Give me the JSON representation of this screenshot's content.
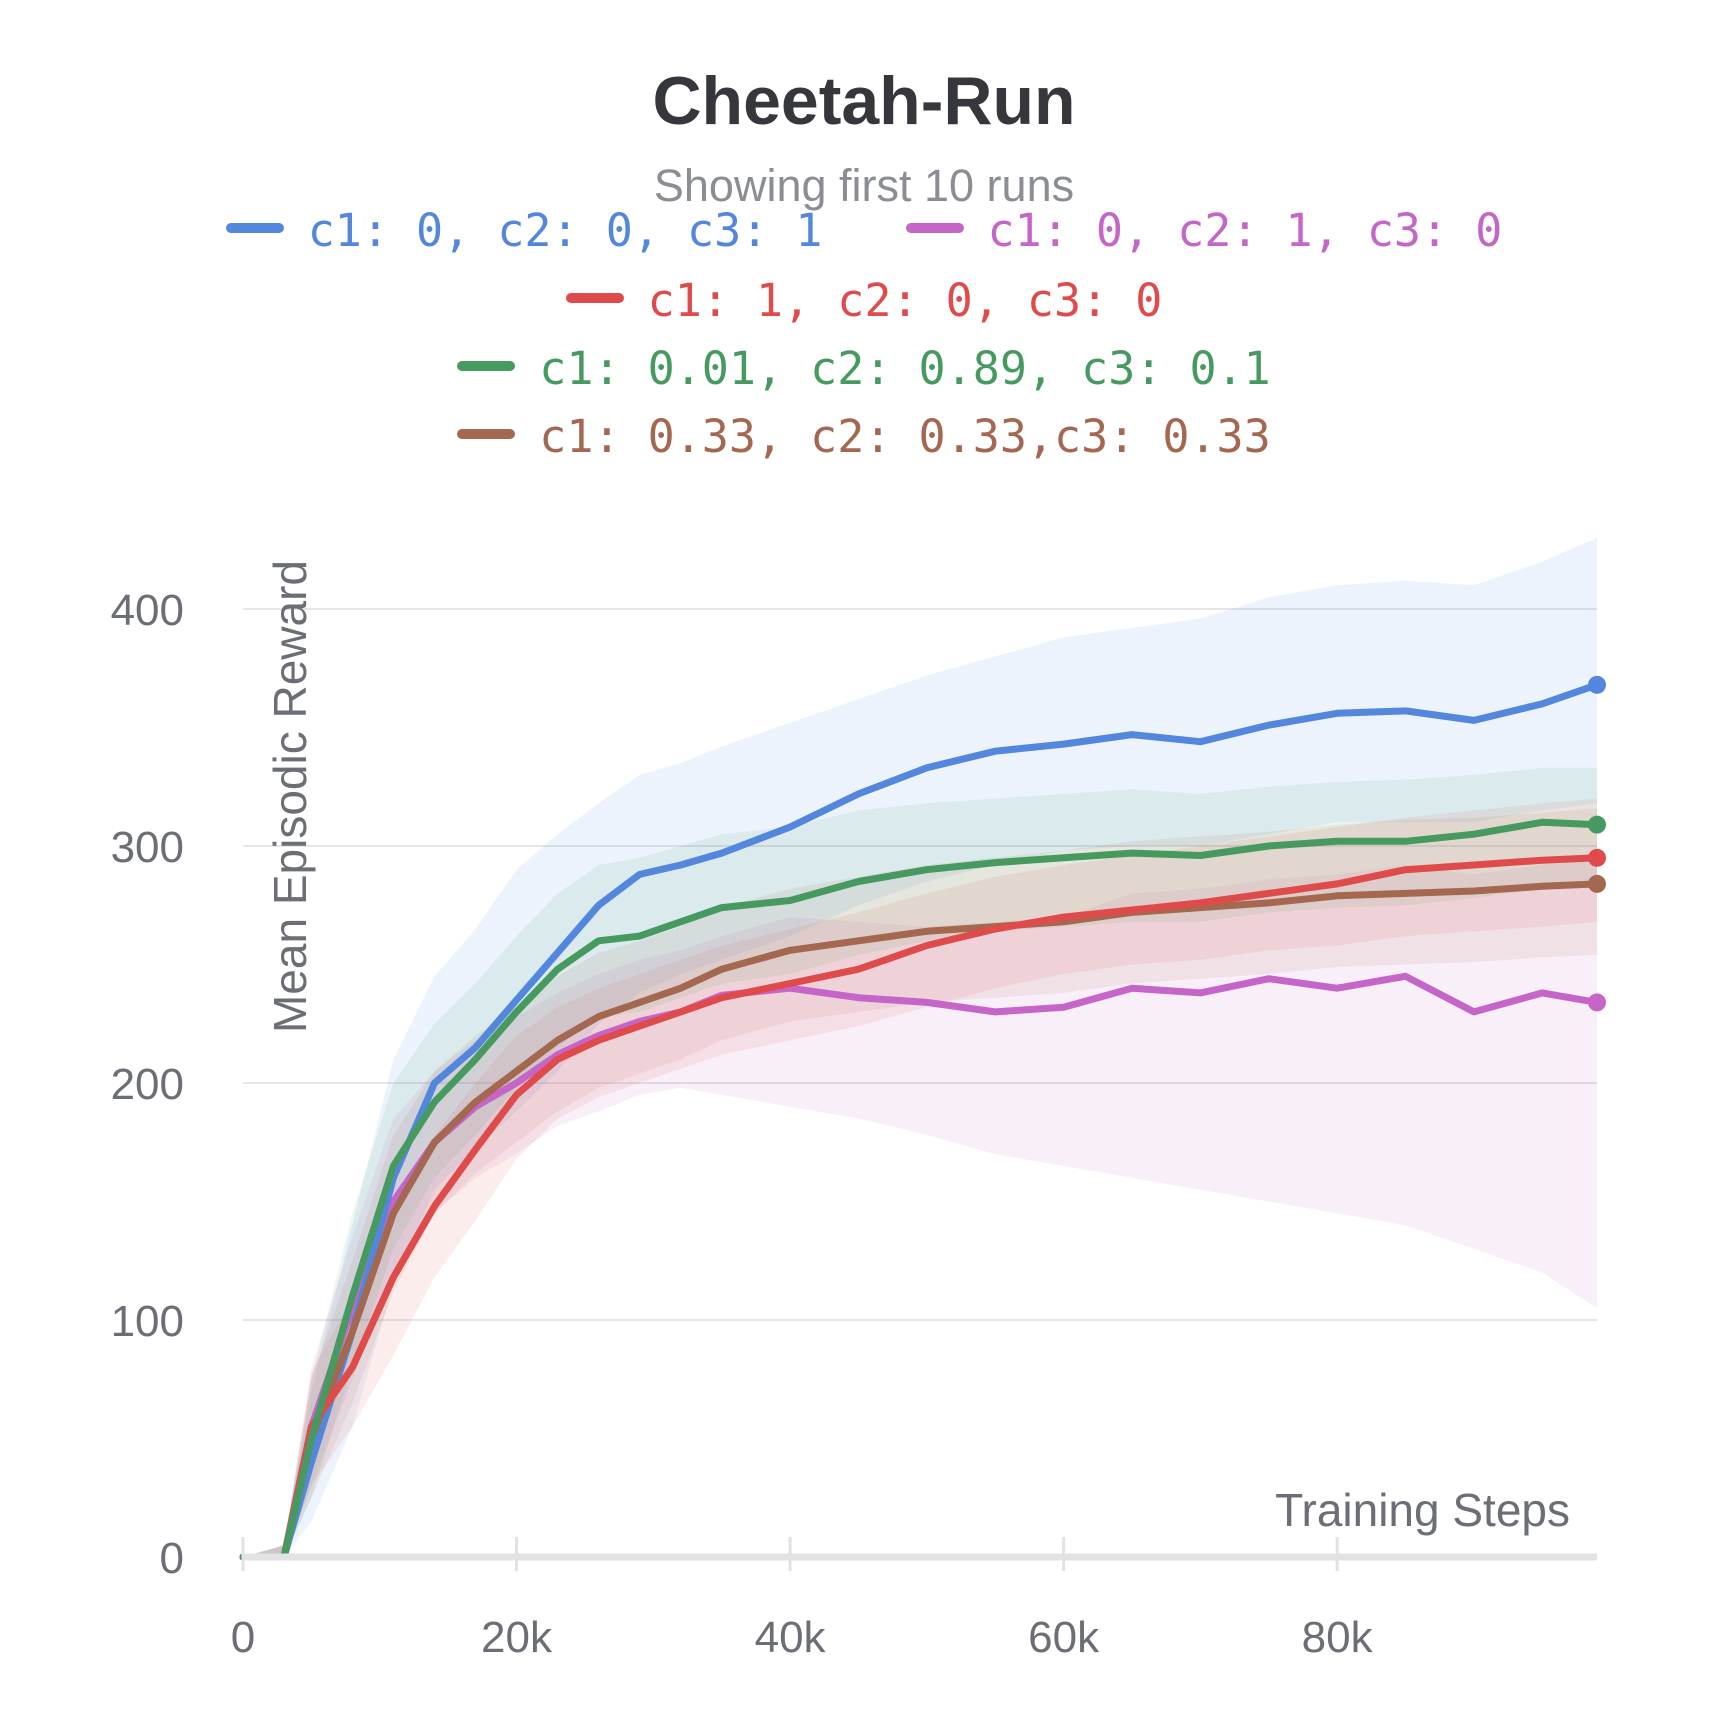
{
  "chart_data": {
    "type": "line",
    "title": "Cheetah-Run",
    "subtitle": "Showing first 10 runs",
    "xlabel": "Training Steps",
    "ylabel": "Mean Episodic Reward",
    "xlim": [
      0,
      99000
    ],
    "ylim": [
      0,
      400
    ],
    "x_ticks": [
      0,
      20000,
      40000,
      60000,
      80000
    ],
    "x_tick_labels": [
      "0",
      "20k",
      "40k",
      "60k",
      "80k"
    ],
    "y_ticks": [
      0,
      100,
      200,
      300,
      400
    ],
    "y_tick_labels": [
      "0",
      "100",
      "200",
      "300",
      "400"
    ],
    "grid": true,
    "legend_position": "top",
    "x": [
      0,
      3000,
      5000,
      8000,
      11000,
      14000,
      17000,
      20000,
      23000,
      26000,
      29000,
      32000,
      35000,
      40000,
      45000,
      50000,
      55000,
      60000,
      65000,
      70000,
      75000,
      80000,
      85000,
      90000,
      95000,
      99000
    ],
    "series": [
      {
        "name": "c1: 0, c2: 0, c3: 1",
        "color": "#5387dd",
        "values": [
          0,
          0,
          40,
          95,
          160,
          200,
          215,
          235,
          255,
          275,
          288,
          292,
          297,
          308,
          322,
          333,
          340,
          343,
          347,
          344,
          351,
          356,
          357,
          353,
          360,
          368
        ],
        "band_upper": [
          0,
          5,
          70,
          140,
          210,
          245,
          265,
          290,
          305,
          318,
          330,
          335,
          342,
          352,
          362,
          372,
          380,
          388,
          392,
          396,
          405,
          410,
          412,
          410,
          420,
          430
        ],
        "band_lower": [
          0,
          0,
          15,
          55,
          115,
          155,
          172,
          188,
          205,
          225,
          238,
          246,
          252,
          262,
          275,
          285,
          292,
          298,
          300,
          300,
          305,
          310,
          310,
          310,
          315,
          318
        ]
      },
      {
        "name": "c1: 0, c2: 1, c3: 0",
        "color": "#c565c7",
        "values": [
          0,
          0,
          55,
          105,
          150,
          175,
          190,
          200,
          212,
          220,
          226,
          230,
          237,
          240,
          236,
          234,
          230,
          232,
          240,
          238,
          244,
          240,
          245,
          230,
          238,
          234
        ],
        "band_upper": [
          0,
          5,
          80,
          135,
          185,
          205,
          218,
          228,
          238,
          246,
          252,
          256,
          262,
          270,
          268,
          266,
          268,
          270,
          280,
          282,
          286,
          288,
          292,
          288,
          292,
          295
        ],
        "band_lower": [
          0,
          0,
          30,
          75,
          120,
          145,
          160,
          170,
          182,
          188,
          195,
          198,
          195,
          190,
          185,
          178,
          170,
          165,
          160,
          155,
          150,
          145,
          140,
          130,
          120,
          105
        ]
      },
      {
        "name": "c1: 1, c2: 0, c3: 0",
        "color": "#df4b4b",
        "values": [
          0,
          0,
          55,
          80,
          118,
          148,
          172,
          195,
          210,
          218,
          224,
          230,
          236,
          242,
          248,
          258,
          265,
          270,
          273,
          276,
          280,
          284,
          290,
          292,
          294,
          295
        ],
        "band_upper": [
          0,
          5,
          78,
          110,
          150,
          178,
          200,
          220,
          232,
          240,
          246,
          252,
          258,
          265,
          272,
          280,
          287,
          292,
          296,
          300,
          304,
          308,
          312,
          315,
          318,
          320
        ],
        "band_lower": [
          0,
          0,
          30,
          55,
          85,
          118,
          142,
          168,
          185,
          194,
          200,
          206,
          212,
          218,
          224,
          232,
          240,
          246,
          250,
          252,
          256,
          258,
          262,
          264,
          266,
          268
        ]
      },
      {
        "name": "c1: 0.01, c2: 0.89, c3: 0.1",
        "color": "#479a5f",
        "values": [
          0,
          0,
          50,
          110,
          165,
          192,
          210,
          230,
          248,
          260,
          262,
          268,
          274,
          277,
          285,
          290,
          293,
          295,
          297,
          296,
          300,
          302,
          302,
          305,
          310,
          309
        ],
        "band_upper": [
          0,
          5,
          75,
          145,
          200,
          225,
          242,
          262,
          280,
          292,
          295,
          300,
          305,
          308,
          315,
          318,
          320,
          322,
          324,
          322,
          325,
          327,
          328,
          330,
          333,
          333
        ],
        "band_lower": [
          0,
          0,
          25,
          80,
          130,
          160,
          178,
          198,
          215,
          228,
          230,
          236,
          242,
          246,
          254,
          260,
          264,
          266,
          268,
          268,
          272,
          274,
          275,
          278,
          282,
          283
        ]
      },
      {
        "name": "c1: 0.33, c2: 0.33,c3: 0.33",
        "color": "#a46750",
        "values": [
          0,
          0,
          50,
          95,
          145,
          175,
          192,
          205,
          218,
          228,
          234,
          240,
          248,
          256,
          260,
          264,
          266,
          268,
          272,
          274,
          276,
          279,
          280,
          281,
          283,
          284
        ],
        "band_upper": [
          0,
          5,
          75,
          125,
          178,
          205,
          220,
          232,
          245,
          255,
          260,
          266,
          274,
          282,
          287,
          292,
          295,
          298,
          302,
          304,
          306,
          309,
          311,
          312,
          314,
          316
        ],
        "band_lower": [
          0,
          0,
          25,
          65,
          112,
          145,
          162,
          175,
          188,
          198,
          204,
          210,
          218,
          226,
          230,
          234,
          236,
          238,
          242,
          244,
          246,
          249,
          250,
          251,
          253,
          254
        ]
      }
    ]
  }
}
